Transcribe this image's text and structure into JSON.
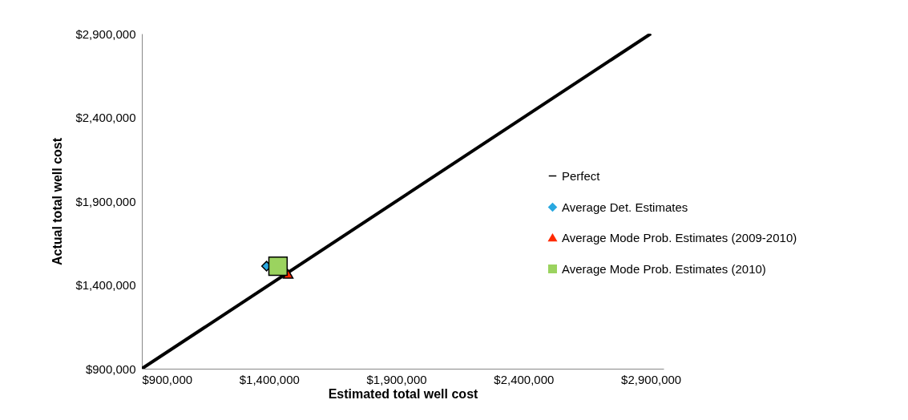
{
  "chart_data": {
    "type": "scatter",
    "xlabel": "Estimated total well cost",
    "ylabel": "Actual total well cost",
    "xlim": [
      900000,
      2950000
    ],
    "ylim": [
      900000,
      2900000
    ],
    "xticks": [
      {
        "value": 900000,
        "label": "$900,000"
      },
      {
        "value": 1400000,
        "label": "$1,400,000"
      },
      {
        "value": 1900000,
        "label": "$1,900,000"
      },
      {
        "value": 2400000,
        "label": "$2,400,000"
      },
      {
        "value": 2900000,
        "label": "$2,900,000"
      }
    ],
    "yticks": [
      {
        "value": 900000,
        "label": "$900,000"
      },
      {
        "value": 1400000,
        "label": "$1,400,000"
      },
      {
        "value": 1900000,
        "label": "$1,900,000"
      },
      {
        "value": 2400000,
        "label": "$2,400,000"
      },
      {
        "value": 2900000,
        "label": "$2,900,000"
      }
    ],
    "grid": false,
    "legend": "right",
    "series": [
      {
        "name": "Perfect",
        "type": "line",
        "color": "#000000",
        "line_style": "solid",
        "marker": "none",
        "x": [
          900000,
          2900000
        ],
        "values": [
          900000,
          2900000
        ]
      },
      {
        "name": "Average Det. Estimates",
        "type": "scatter",
        "color": "#29a8e0",
        "marker": "diamond",
        "x": [
          1390000
        ],
        "values": [
          1512000
        ]
      },
      {
        "name": "Average Mode Prob. Estimates (2009-2010)",
        "type": "scatter",
        "color": "#ff2a00",
        "marker": "triangle",
        "x": [
          1475000
        ],
        "values": [
          1465000
        ]
      },
      {
        "name": "Average Mode Prob. Estimates (2010)",
        "type": "scatter",
        "color": "#9bd35f",
        "marker": "square",
        "x": [
          1435000
        ],
        "values": [
          1512000
        ]
      }
    ]
  }
}
